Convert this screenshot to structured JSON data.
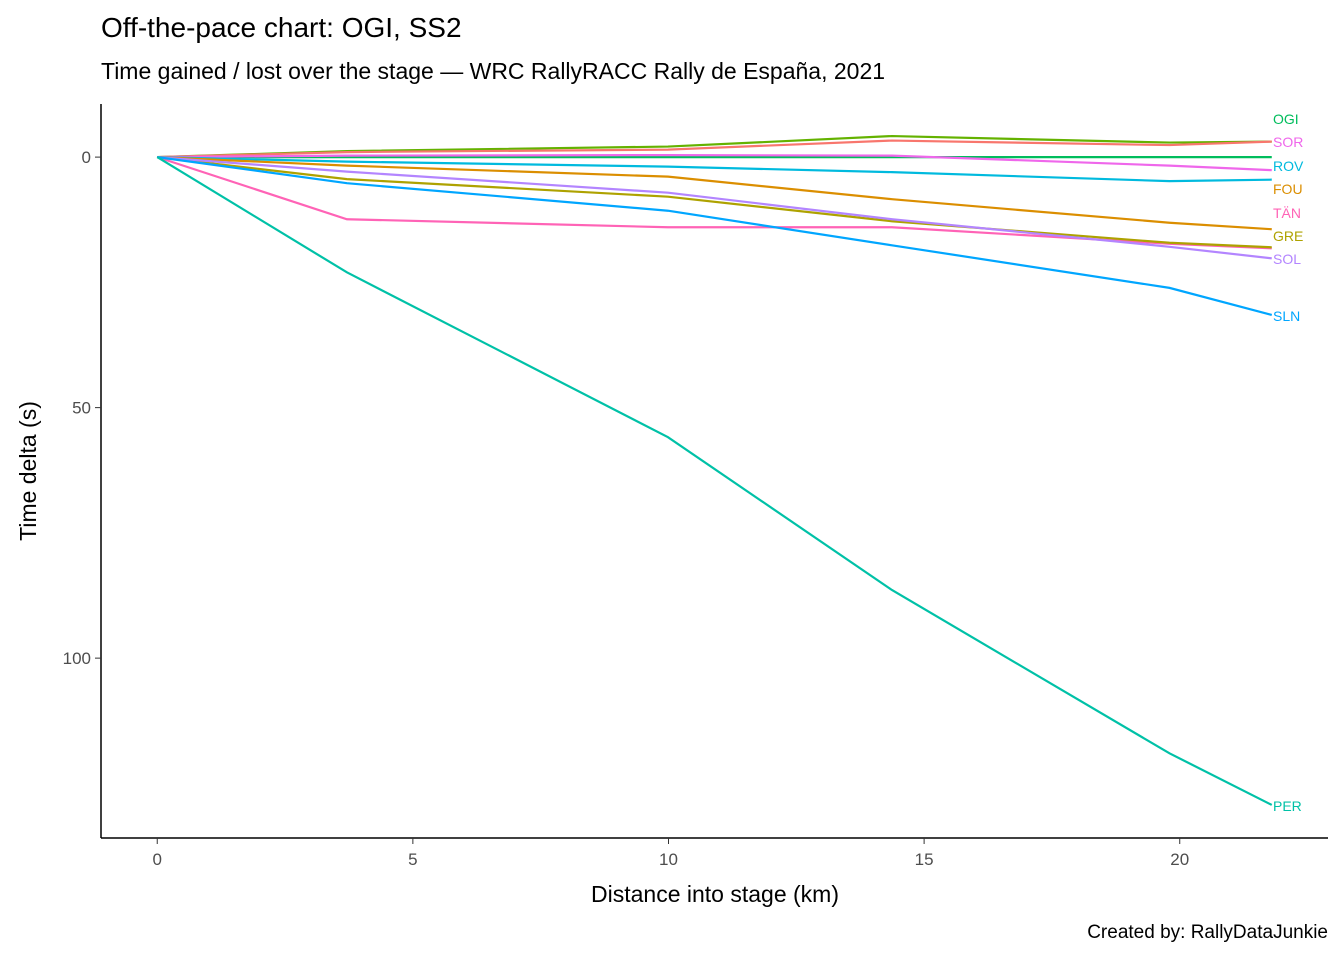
{
  "title": "Off-the-pace chart: OGI, SS2",
  "subtitle": "Time gained / lost over the stage — WRC RallyRACC Rally de España, 2021",
  "caption": "Created by: RallyDataJunkie",
  "chart_data": {
    "type": "line",
    "title": "Off-the-pace chart: OGI, SS2",
    "subtitle": "Time gained / lost over the stage — WRC RallyRACC Rally de España, 2021",
    "xlabel": "Distance into stage (km)",
    "ylabel": "Time delta (s)",
    "xlim": [
      -1.1,
      22.9
    ],
    "ylim": [
      -10.6,
      135.9
    ],
    "y_reversed": true,
    "grid": false,
    "legend": "none (direct labels at line ends)",
    "xticks": [
      0,
      5,
      10,
      15,
      20
    ],
    "yticks": [
      0,
      50,
      100
    ],
    "x": [
      0,
      3.71,
      9.99,
      14.37,
      19.8,
      21.8
    ],
    "series": [
      {
        "name": "",
        "color": "#64B200",
        "values": [
          0,
          -1.2,
          -2.1,
          -4.2,
          -2.9,
          -3.1
        ]
      },
      {
        "name": "",
        "color": "#F8766D",
        "values": [
          0,
          -1.0,
          -1.5,
          -3.3,
          -2.4,
          -3.1
        ]
      },
      {
        "name": "OGI",
        "color": "#00BD5C",
        "values": [
          0,
          0,
          0,
          0,
          0,
          0
        ]
      },
      {
        "name": "SOR",
        "color": "#EF67EB",
        "values": [
          0,
          -0.3,
          -0.4,
          -0.3,
          1.7,
          2.6
        ]
      },
      {
        "name": "ROV",
        "color": "#00BADE",
        "values": [
          0,
          0.9,
          1.9,
          3.0,
          4.8,
          4.5
        ]
      },
      {
        "name": "FOU",
        "color": "#DB8E00",
        "values": [
          0,
          1.7,
          3.9,
          8.4,
          13.1,
          14.4
        ]
      },
      {
        "name": "TÄN",
        "color": "#FF63B6",
        "values": [
          0,
          12.4,
          14.0,
          14.0,
          17.3,
          18.2
        ]
      },
      {
        "name": "GRE",
        "color": "#AEA200",
        "values": [
          0,
          4.4,
          7.9,
          12.8,
          17.1,
          18.0
        ]
      },
      {
        "name": "SOL",
        "color": "#B385FF",
        "values": [
          0,
          2.9,
          7.1,
          12.4,
          17.9,
          20.2
        ]
      },
      {
        "name": "SLN",
        "color": "#00A6FF",
        "values": [
          0,
          5.2,
          10.7,
          17.6,
          26.1,
          31.5
        ]
      },
      {
        "name": "PER",
        "color": "#00C1A7",
        "values": [
          0,
          23.0,
          55.9,
          86.4,
          119.0,
          129.3
        ]
      }
    ]
  }
}
